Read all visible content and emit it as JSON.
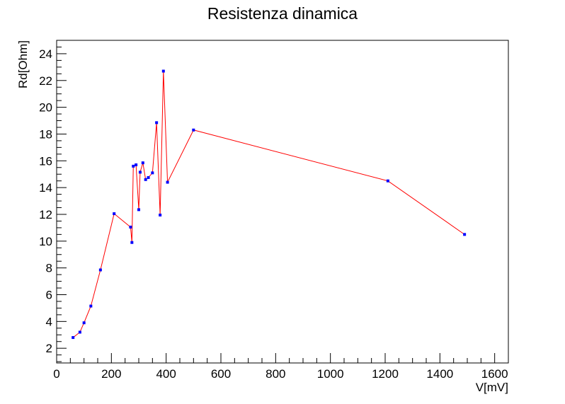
{
  "colors": {
    "line": "#ff0000",
    "marker": "#0000ff",
    "axis": "#000000",
    "background": "#ffffff"
  },
  "chart_data": {
    "type": "line",
    "title": "Resistenza dinamica",
    "xlabel": "V[mV]",
    "ylabel": "Rd[Ohm]",
    "xlim": [
      0,
      1650
    ],
    "ylim": [
      0.9,
      25
    ],
    "xticks": [
      0,
      200,
      400,
      600,
      800,
      1000,
      1200,
      1400,
      1600
    ],
    "yticks": [
      2,
      4,
      6,
      8,
      10,
      12,
      14,
      16,
      18,
      20,
      22,
      24
    ],
    "grid": false,
    "legend": "none",
    "series": [
      {
        "x": [
          60,
          85,
          100,
          125,
          160,
          210,
          270,
          275,
          280,
          290,
          300,
          305,
          315,
          325,
          335,
          350,
          365,
          378,
          390,
          405,
          500,
          1210,
          1490
        ],
        "y": [
          2.8,
          3.2,
          3.9,
          5.15,
          7.85,
          12.05,
          11.05,
          9.9,
          15.6,
          15.7,
          12.35,
          15.15,
          15.85,
          14.6,
          14.75,
          15.1,
          18.85,
          11.95,
          22.7,
          14.4,
          18.3,
          14.5,
          10.5
        ]
      }
    ]
  }
}
